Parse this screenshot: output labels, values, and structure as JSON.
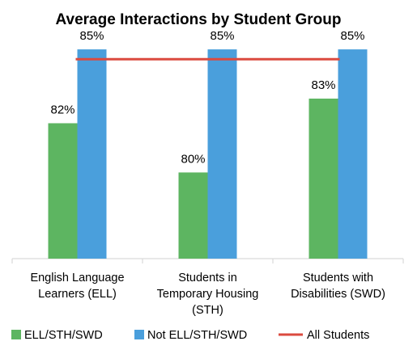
{
  "chart_data": {
    "type": "bar",
    "title": "Average Interactions by Student Group",
    "xlabel": "",
    "ylabel": "",
    "categories": [
      [
        "English Language",
        "Learners (ELL)"
      ],
      [
        "Students in",
        "Temporary Housing",
        "(STH)"
      ],
      [
        "Students with",
        "Disabilities (SWD)"
      ]
    ],
    "series": [
      {
        "name": "ELL/STH/SWD",
        "color": "#5DB561",
        "values": [
          82,
          80,
          83
        ],
        "labels": [
          "82%",
          "80%",
          "83%"
        ]
      },
      {
        "name": "Not ELL/STH/SWD",
        "color": "#4A9FDC",
        "values": [
          85,
          85,
          85
        ],
        "labels": [
          "85%",
          "85%",
          "85%"
        ]
      }
    ],
    "reference_line": {
      "name": "All Students",
      "color": "#DB4A3F",
      "value": 84.6
    },
    "ylim": [
      76.5,
      85.2
    ],
    "grid": false,
    "legend_position": "bottom"
  }
}
